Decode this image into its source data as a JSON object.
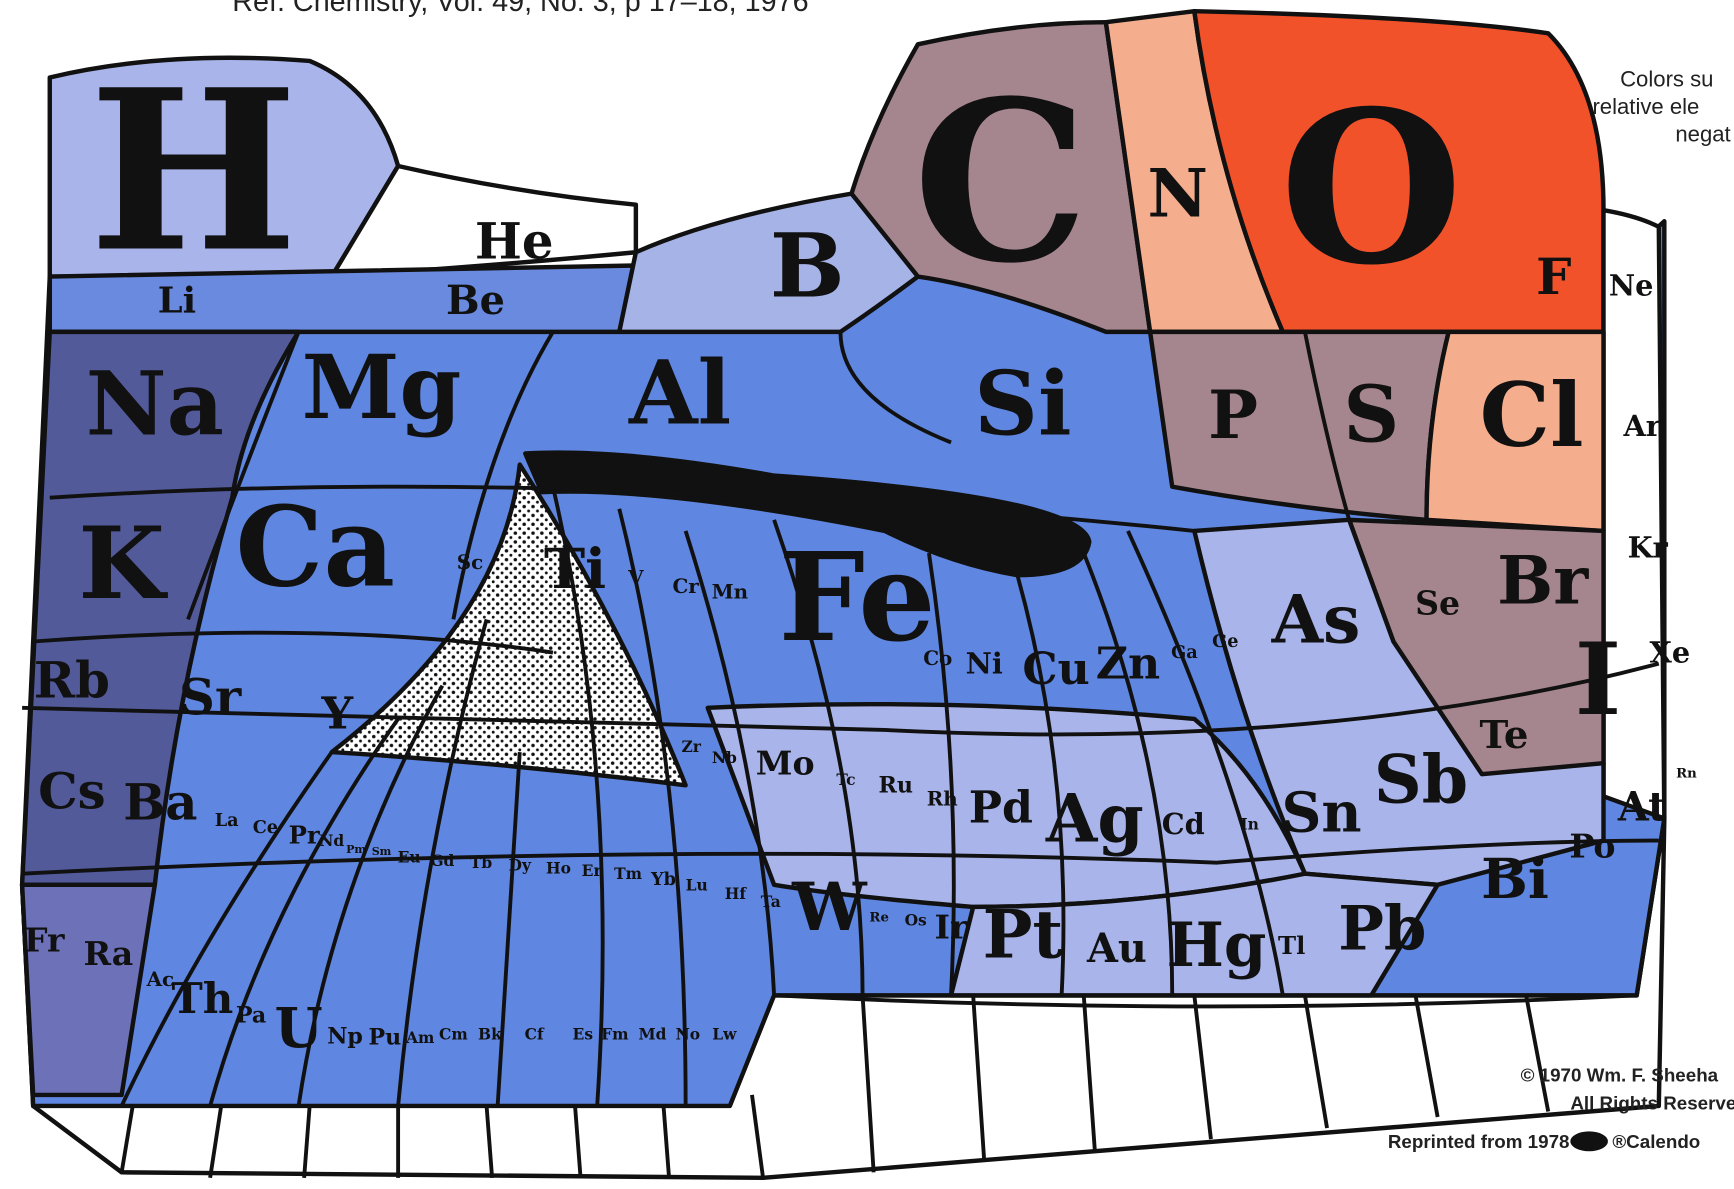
{
  "header": {
    "reference": "Ref. Chemistry, Vol. 49, No. 3, p 17–18, 1976"
  },
  "legend_note": {
    "lines": [
      "Colors su",
      "relative ele",
      "negat"
    ]
  },
  "elements": [
    "H",
    "He",
    "Li",
    "Be",
    "B",
    "C",
    "N",
    "O",
    "F",
    "Ne",
    "Na",
    "Mg",
    "Al",
    "Si",
    "P",
    "S",
    "Cl",
    "Ar",
    "K",
    "Ca",
    "Sc",
    "Ti",
    "V",
    "Cr",
    "Mn",
    "Fe",
    "Co",
    "Ni",
    "Cu",
    "Zn",
    "Ga",
    "Ge",
    "As",
    "Se",
    "Br",
    "Kr",
    "Rb",
    "Sr",
    "Y",
    "Zr",
    "Nb",
    "Mo",
    "Tc",
    "Ru",
    "Rh",
    "Pd",
    "Ag",
    "Cd",
    "In",
    "Sn",
    "Sb",
    "Te",
    "I",
    "Xe",
    "Cs",
    "Ba",
    "La",
    "Ce",
    "Pr",
    "Nd",
    "Pm",
    "Sm",
    "Eu",
    "Gd",
    "Tb",
    "Dy",
    "Ho",
    "Er",
    "Tm",
    "Yb",
    "Lu",
    "Hf",
    "Ta",
    "W",
    "Re",
    "Os",
    "Ir",
    "Pt",
    "Au",
    "Hg",
    "Tl",
    "Pb",
    "Bi",
    "Po",
    "At",
    "Rn",
    "Fr",
    "Ra",
    "Ac",
    "Th",
    "Pa",
    "U",
    "Np",
    "Pu",
    "Am",
    "Cm",
    "Bk",
    "Cf",
    "Es",
    "Fm",
    "Md",
    "No",
    "Lw"
  ],
  "credits": {
    "copyright": "© 1970 Wm. F. Sheeha",
    "rights": "All Rights Reserved",
    "reprint": "Reprinted from 1978",
    "calendar": "®Calendo"
  }
}
